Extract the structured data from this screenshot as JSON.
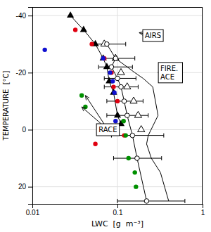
{
  "chart_data": {
    "type": "scatter",
    "log": "x",
    "grid": true,
    "xlabel": "LWC  [g  m⁻³]",
    "ylabel": "TEMPERATURE  [°C]",
    "xlim": [
      0.01,
      1
    ],
    "xticks": [
      0.01,
      0.1,
      1
    ],
    "ylim": [
      26,
      -43
    ],
    "yticks": [
      -40,
      -20,
      0,
      20
    ],
    "series": [
      {
        "type": "line",
        "marker": "triangle",
        "color": "#000000",
        "x": [
          0.028,
          0.04,
          0.055,
          0.068,
          0.075,
          0.08,
          0.09,
          0.1,
          0.11
        ],
        "values": [
          -40,
          -35,
          -30,
          -25,
          -22,
          -17,
          -13,
          -5,
          -2
        ]
      },
      {
        "type": "scatter",
        "marker": "triangle-open",
        "color": "#000000",
        "x": [
          0.07,
          0.095,
          0.11,
          0.13,
          0.155,
          0.175,
          0.19
        ],
        "values": [
          -30,
          -25,
          -20,
          -15,
          -10,
          -5,
          0
        ]
      },
      {
        "type": "line",
        "marker": "circle-open",
        "color": "#000000",
        "x": [
          0.075,
          0.095,
          0.085,
          0.1,
          0.11,
          0.12,
          0.13,
          0.15,
          0.17,
          0.22
        ],
        "values": [
          -30,
          -25,
          -22,
          -18,
          -15,
          -10,
          -5,
          2,
          10,
          25
        ],
        "xerr_lo": [
          0.025,
          0.03,
          0.025,
          0.03,
          0.04,
          0.045,
          0.055,
          0.065,
          0.08,
          0.12
        ],
        "xerr_hi": [
          0.05,
          0.065,
          0.065,
          0.065,
          0.065,
          0.08,
          0.1,
          0.2,
          0.16,
          0.4
        ]
      },
      {
        "type": "line",
        "color": "#000000",
        "x": [
          0.095,
          0.16,
          0.2,
          0.26,
          0.3,
          0.23,
          0.22,
          0.25,
          0.32,
          0.4
        ],
        "values": [
          -25,
          -20,
          -18,
          -15,
          -5,
          2,
          5,
          10,
          15,
          25
        ]
      },
      {
        "type": "scatter",
        "marker": "circle",
        "color": "#e00010",
        "x": [
          0.032,
          0.05,
          0.07,
          0.085,
          0.09,
          0.055,
          0.12,
          0.1
        ],
        "values": [
          -35,
          -30,
          -25,
          -20,
          -15,
          5,
          2,
          -10
        ]
      },
      {
        "type": "scatter",
        "marker": "circle",
        "color": "#1010d0",
        "x": [
          0.014,
          0.068,
          0.082,
          0.088,
          0.092,
          0.095
        ],
        "values": [
          -28,
          -25,
          -20,
          -17,
          -13,
          -3
        ]
      },
      {
        "type": "scatter",
        "marker": "circle",
        "color": "#009000",
        "x": [
          0.038,
          0.042,
          0.118,
          0.125,
          0.135,
          0.16,
          0.165
        ],
        "values": [
          -12,
          -8,
          -3,
          2,
          10,
          15,
          20
        ]
      }
    ],
    "annotations": [
      {
        "text": "AIRS",
        "x": 0.21,
        "y": -33,
        "arrows": [
          {
            "x": 0.18,
            "y": -34
          }
        ]
      },
      {
        "text": "FIRE.\nACE",
        "x": 0.32,
        "y": -20,
        "arrows": [
          {
            "x": 0.3,
            "y": -20
          }
        ]
      },
      {
        "text": "RACE",
        "x": 0.06,
        "y": 0,
        "arrows": [
          {
            "x": 0.038,
            "y": -8
          },
          {
            "x": 0.042,
            "y": -12
          }
        ]
      }
    ]
  }
}
